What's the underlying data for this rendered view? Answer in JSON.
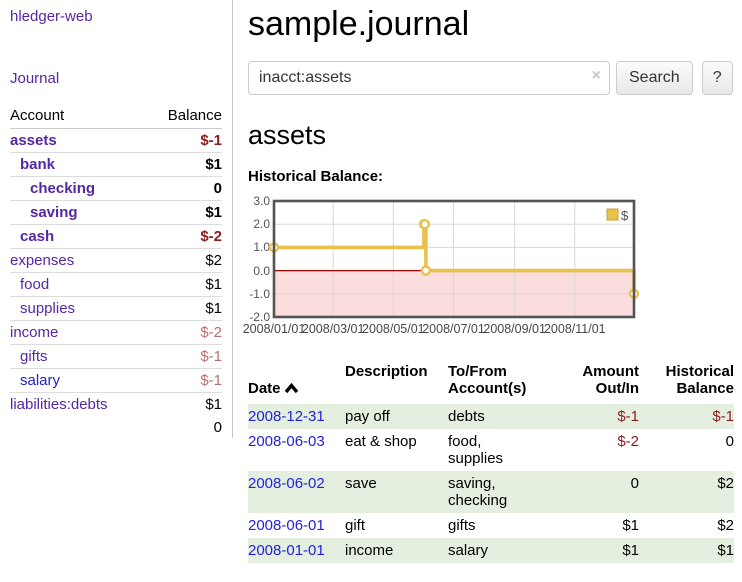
{
  "app": {
    "title": "hledger-web",
    "nav_journal": "Journal"
  },
  "sidebar": {
    "header": {
      "account": "Account",
      "balance": "Balance"
    },
    "accounts": [
      {
        "name": "assets",
        "level": 0,
        "balance": "$-1",
        "bold": true
      },
      {
        "name": "bank",
        "level": 1,
        "balance": "$1",
        "bold": true
      },
      {
        "name": "checking",
        "level": 2,
        "balance": "0",
        "bold": true
      },
      {
        "name": "saving",
        "level": 2,
        "balance": "$1",
        "bold": true
      },
      {
        "name": "cash",
        "level": 1,
        "balance": "$-2",
        "bold": true
      },
      {
        "name": "expenses",
        "level": 0,
        "balance": "$2"
      },
      {
        "name": "food",
        "level": 1,
        "balance": "$1"
      },
      {
        "name": "supplies",
        "level": 1,
        "balance": "$1"
      },
      {
        "name": "income",
        "level": 0,
        "balance": "$-2"
      },
      {
        "name": "gifts",
        "level": 1,
        "balance": "$-1"
      },
      {
        "name": "salary",
        "level": 1,
        "balance": "$-1",
        "blue": true
      },
      {
        "name": "liabilities:debts",
        "level": 0,
        "balance": "$1"
      }
    ],
    "total": "0"
  },
  "main": {
    "title": "sample.journal",
    "search": {
      "value": "inacct:assets",
      "clear_icon": "×",
      "button": "Search",
      "help_button": "?"
    },
    "account_heading": "assets",
    "chart_label": "Historical Balance:"
  },
  "chart_data": {
    "type": "line",
    "title": "Historical Balance:",
    "step": true,
    "series": [
      {
        "name": "$",
        "color": "#e8c24a",
        "points": [
          [
            "2008-01-01",
            1
          ],
          [
            "2008-06-01",
            2
          ],
          [
            "2008-06-02",
            2
          ],
          [
            "2008-06-03",
            0
          ],
          [
            "2008-12-31",
            -1
          ]
        ]
      }
    ],
    "x_range": [
      "2008-01-01",
      "2008-12-31"
    ],
    "x_ticks": [
      "2008/01/01",
      "2008/03/01",
      "2008/05/01",
      "2008/07/01",
      "2008/09/01",
      "2008/11/01"
    ],
    "y_ticks": [
      3.0,
      2.0,
      1.0,
      0.0,
      -1.0,
      -2.0
    ],
    "ylim": [
      -2,
      3
    ],
    "legend": "$",
    "legend_position": "top-right",
    "grid": true,
    "negative_region_color": "#fbdddd",
    "zero_line_color": "#a40000"
  },
  "table": {
    "headers": [
      "Date",
      "Description",
      "To/From\nAccount(s)",
      "Amount\nOut/In",
      "Historical\nBalance"
    ],
    "rows": [
      {
        "date": "2008-12-31",
        "description": "pay off",
        "accounts": "debts",
        "amount": "$-1",
        "balance": "$-1"
      },
      {
        "date": "2008-06-03",
        "description": "eat & shop",
        "accounts": "food, supplies",
        "amount": "$-2",
        "balance": "0"
      },
      {
        "date": "2008-06-02",
        "description": "save",
        "accounts": "saving,\nchecking",
        "amount": "0",
        "balance": "$2"
      },
      {
        "date": "2008-06-01",
        "description": "gift",
        "accounts": "gifts",
        "amount": "$1",
        "balance": "$2"
      },
      {
        "date": "2008-01-01",
        "description": "income",
        "accounts": "salary",
        "amount": "$1",
        "balance": "$1"
      }
    ]
  }
}
